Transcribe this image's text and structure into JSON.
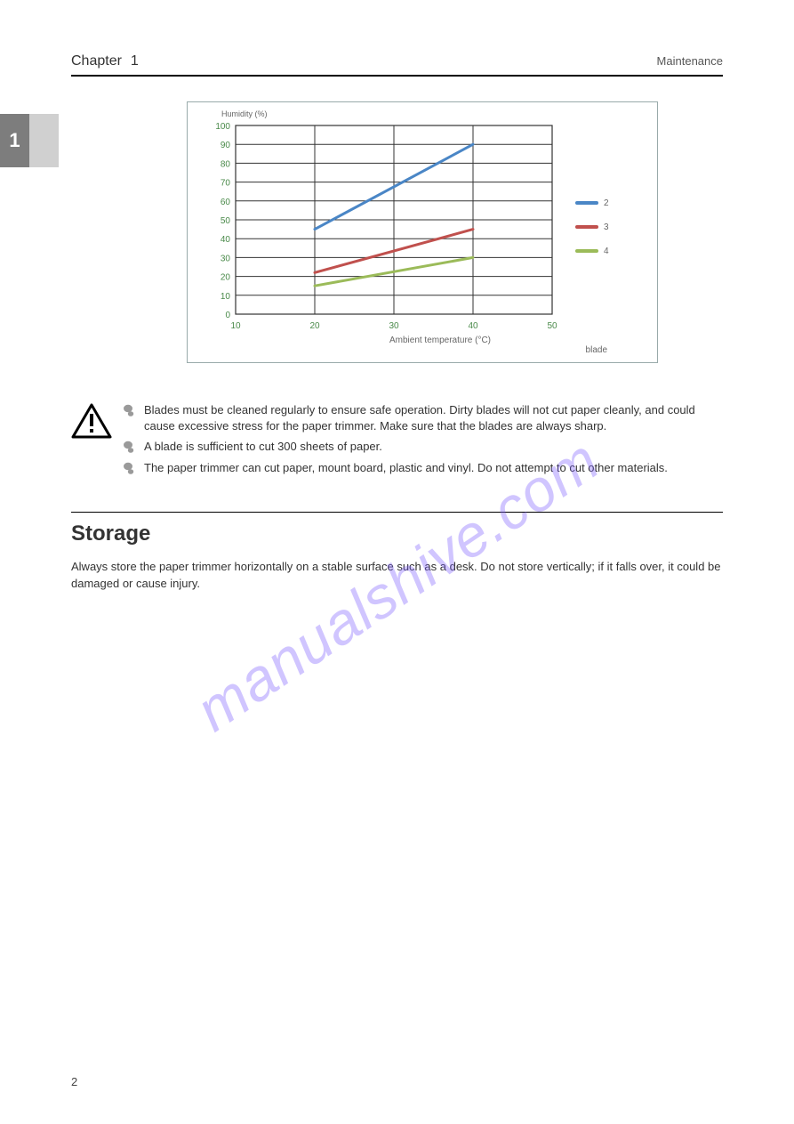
{
  "header": {
    "chapter_label": "Chapter",
    "chapter_num": "1",
    "title_right": "Maintenance"
  },
  "sidebar": {
    "chapter_num": "1"
  },
  "chart": {
    "type": "line",
    "yaxis_label": "Humidity (%)",
    "xaxis_label": "Ambient temperature (°C)",
    "blade_row_label": "blade",
    "xlim": [
      10,
      50
    ],
    "ylim": [
      0,
      100
    ],
    "xticks": [
      10,
      20,
      30,
      40,
      50
    ],
    "yticks": [
      0,
      10,
      20,
      30,
      40,
      50,
      60,
      70,
      80,
      90,
      100
    ],
    "tick_fontsize": 10,
    "tick_color": "#4a8a4a",
    "grid_color": "#333333",
    "border_color": "#99aaaa",
    "background_color": "#ffffff",
    "line_width": 3,
    "series": [
      {
        "name": "2",
        "color": "#4a86c6",
        "points": [
          [
            20,
            45
          ],
          [
            40,
            90
          ]
        ]
      },
      {
        "name": "3",
        "color": "#c0504d",
        "points": [
          [
            20,
            22
          ],
          [
            40,
            45
          ]
        ]
      },
      {
        "name": "4",
        "color": "#9bbb59",
        "points": [
          [
            20,
            15
          ],
          [
            40,
            30
          ]
        ]
      }
    ]
  },
  "caution": {
    "bullets": [
      "Blades must be cleaned regularly to ensure safe operation. Dirty blades will not cut paper cleanly, and could cause excessive stress for the paper trimmer. Make sure that the blades are always sharp.",
      "A blade is sufficient to cut 300 sheets of paper.",
      "The paper trimmer can cut paper, mount board, plastic and vinyl. Do not attempt to cut other materials."
    ]
  },
  "section": {
    "title": "Storage",
    "body": "Always store the paper trimmer horizontally on a stable surface such as a desk. Do not store vertically; if it falls over, it could be damaged or cause injury."
  },
  "watermark": "manualshive.com",
  "page_number": "2"
}
